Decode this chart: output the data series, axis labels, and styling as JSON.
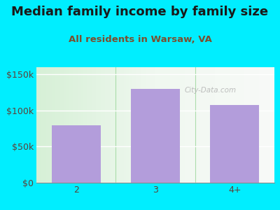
{
  "title": "Median family income by family size",
  "subtitle": "All residents in Warsaw, VA",
  "categories": [
    "2",
    "3",
    "4+"
  ],
  "values": [
    80000,
    130000,
    108000
  ],
  "bar_color": "#b39ddb",
  "background_outer": "#00eeff",
  "ylim": [
    0,
    160000
  ],
  "yticks": [
    0,
    50000,
    100000,
    150000
  ],
  "ytick_labels": [
    "$0",
    "$50k",
    "$100k",
    "$150k"
  ],
  "title_fontsize": 13,
  "subtitle_fontsize": 9.5,
  "tick_fontsize": 9,
  "title_color": "#1a1a1a",
  "subtitle_color": "#7b4f2e",
  "tick_color": "#5d4037",
  "watermark": "City-Data.com"
}
